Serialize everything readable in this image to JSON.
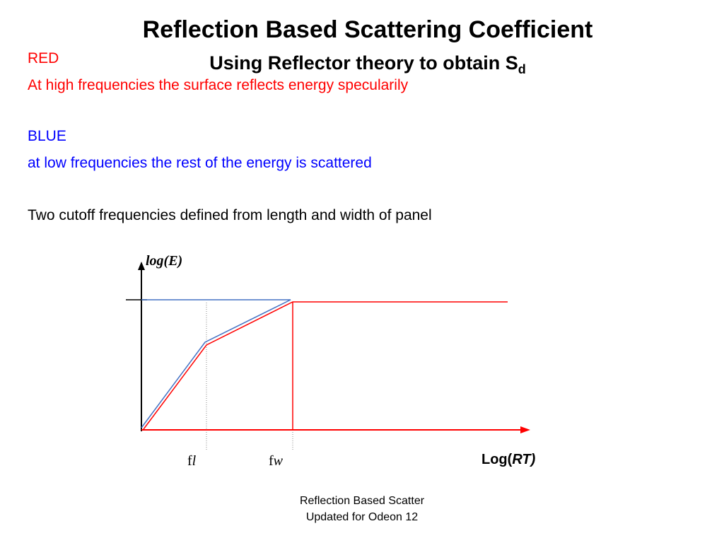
{
  "slide": {
    "title": "Reflection Based Scattering Coefficient",
    "subtitle_main": "Using Reflector theory to obtain S",
    "subtitle_sub": "d"
  },
  "body_text": {
    "red_heading": "RED",
    "red_line": "At high frequencies the surface reflects energy specularily",
    "blue_heading": "BLUE",
    "blue_line": "at low frequencies the rest of the energy is scattered",
    "cutoff_line": "Two cutoff frequencies defined from length and width of panel"
  },
  "graph": {
    "y_axis_label": "log(E)",
    "x_axis_label_prefix": "Log(",
    "x_axis_label_italic": "RT)",
    "tick_fl_prefix": "f",
    "tick_fl_italic": "l",
    "tick_fw_prefix": "f",
    "tick_fw_italic": "w",
    "red_color": "#ff0000",
    "blue_color": "#4472c4",
    "axis_color": "#000000"
  },
  "footer": {
    "line1": "Reflection Based Scatter",
    "line2": "Updated for Odeon 12"
  }
}
